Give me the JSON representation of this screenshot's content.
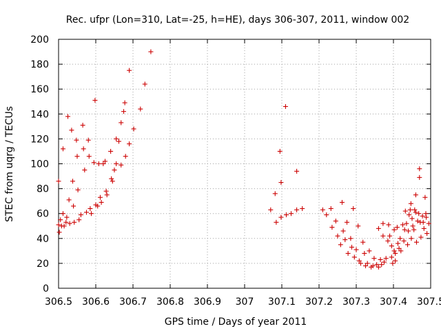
{
  "chart_data": {
    "type": "scatter",
    "title": "Rec. ufpr (Lon=310, Lat=-25, h=HE), days 306-307, 2011, window 002",
    "xlabel": "GPS time / Days of year 2011",
    "ylabel": "STEC from uqrg / TECUs",
    "xlim": [
      306.5,
      307.5
    ],
    "ylim": [
      0,
      200
    ],
    "xticks": [
      "306.5",
      "306.6",
      "306.7",
      "306.8",
      "306.9",
      "307",
      "307.1",
      "307.2",
      "307.3",
      "307.4",
      "307.5"
    ],
    "yticks": [
      "0",
      "20",
      "40",
      "60",
      "80",
      "100",
      "120",
      "140",
      "160",
      "180",
      "200"
    ],
    "grid": true,
    "marker": "+",
    "color": "#cc0000",
    "points": [
      [
        306.5,
        86
      ],
      [
        306.5,
        51
      ],
      [
        306.502,
        45
      ],
      [
        306.505,
        55
      ],
      [
        306.508,
        50
      ],
      [
        306.512,
        112
      ],
      [
        306.512,
        60
      ],
      [
        306.515,
        50
      ],
      [
        306.52,
        53
      ],
      [
        306.522,
        57
      ],
      [
        306.525,
        138
      ],
      [
        306.528,
        71
      ],
      [
        306.53,
        52
      ],
      [
        306.535,
        127
      ],
      [
        306.538,
        86
      ],
      [
        306.54,
        66
      ],
      [
        306.542,
        53
      ],
      [
        306.548,
        119
      ],
      [
        306.55,
        106
      ],
      [
        306.552,
        79
      ],
      [
        306.555,
        55
      ],
      [
        306.56,
        59
      ],
      [
        306.565,
        131
      ],
      [
        306.567,
        112
      ],
      [
        306.57,
        95
      ],
      [
        306.575,
        61
      ],
      [
        306.58,
        119
      ],
      [
        306.582,
        106
      ],
      [
        306.585,
        64
      ],
      [
        306.588,
        60
      ],
      [
        306.595,
        101
      ],
      [
        306.598,
        151
      ],
      [
        306.6,
        67
      ],
      [
        306.605,
        66
      ],
      [
        306.608,
        100
      ],
      [
        306.612,
        73
      ],
      [
        306.615,
        69
      ],
      [
        306.62,
        100
      ],
      [
        306.625,
        102
      ],
      [
        306.628,
        78
      ],
      [
        306.63,
        75
      ],
      [
        306.64,
        110
      ],
      [
        306.642,
        88
      ],
      [
        306.645,
        86
      ],
      [
        306.65,
        95
      ],
      [
        306.655,
        120
      ],
      [
        306.655,
        100
      ],
      [
        306.662,
        118
      ],
      [
        306.668,
        133
      ],
      [
        306.668,
        99
      ],
      [
        306.675,
        142
      ],
      [
        306.678,
        149
      ],
      [
        306.68,
        106
      ],
      [
        306.69,
        175
      ],
      [
        306.69,
        116
      ],
      [
        306.702,
        128
      ],
      [
        306.72,
        144
      ],
      [
        306.732,
        164
      ],
      [
        306.748,
        190
      ],
      [
        307.07,
        63
      ],
      [
        307.082,
        76
      ],
      [
        307.085,
        53
      ],
      [
        307.095,
        110
      ],
      [
        307.098,
        85
      ],
      [
        307.098,
        57
      ],
      [
        307.11,
        146
      ],
      [
        307.112,
        59
      ],
      [
        307.125,
        60
      ],
      [
        307.14,
        94
      ],
      [
        307.14,
        63
      ],
      [
        307.155,
        64
      ],
      [
        307.21,
        63
      ],
      [
        307.22,
        59
      ],
      [
        307.232,
        64
      ],
      [
        307.235,
        49
      ],
      [
        307.245,
        54
      ],
      [
        307.25,
        42
      ],
      [
        307.258,
        35
      ],
      [
        307.262,
        69
      ],
      [
        307.265,
        46
      ],
      [
        307.27,
        39
      ],
      [
        307.275,
        53
      ],
      [
        307.278,
        28
      ],
      [
        307.285,
        40
      ],
      [
        307.288,
        33
      ],
      [
        307.292,
        64
      ],
      [
        307.295,
        25
      ],
      [
        307.3,
        31
      ],
      [
        307.305,
        50
      ],
      [
        307.308,
        22
      ],
      [
        307.312,
        20
      ],
      [
        307.318,
        37
      ],
      [
        307.322,
        28
      ],
      [
        307.325,
        18
      ],
      [
        307.33,
        20
      ],
      [
        307.335,
        30
      ],
      [
        307.34,
        17
      ],
      [
        307.345,
        18
      ],
      [
        307.348,
        24
      ],
      [
        307.355,
        19
      ],
      [
        307.36,
        48
      ],
      [
        307.36,
        17
      ],
      [
        307.365,
        23
      ],
      [
        307.368,
        19
      ],
      [
        307.372,
        52
      ],
      [
        307.372,
        42
      ],
      [
        307.375,
        21
      ],
      [
        307.38,
        24
      ],
      [
        307.385,
        38
      ],
      [
        307.387,
        51
      ],
      [
        307.39,
        42
      ],
      [
        307.395,
        34
      ],
      [
        307.395,
        25
      ],
      [
        307.398,
        20
      ],
      [
        307.402,
        47
      ],
      [
        307.402,
        30
      ],
      [
        307.405,
        28
      ],
      [
        307.405,
        22
      ],
      [
        307.41,
        49
      ],
      [
        307.412,
        36
      ],
      [
        307.415,
        32
      ],
      [
        307.418,
        40
      ],
      [
        307.42,
        30
      ],
      [
        307.425,
        51
      ],
      [
        307.428,
        38
      ],
      [
        307.43,
        47
      ],
      [
        307.432,
        62
      ],
      [
        307.435,
        52
      ],
      [
        307.438,
        35
      ],
      [
        307.44,
        46
      ],
      [
        307.442,
        59
      ],
      [
        307.445,
        63
      ],
      [
        307.447,
        68
      ],
      [
        307.448,
        40
      ],
      [
        307.45,
        56
      ],
      [
        307.452,
        50
      ],
      [
        307.455,
        47
      ],
      [
        307.457,
        63
      ],
      [
        307.46,
        75
      ],
      [
        307.46,
        61
      ],
      [
        307.462,
        37
      ],
      [
        307.465,
        54
      ],
      [
        307.468,
        60
      ],
      [
        307.47,
        96
      ],
      [
        307.47,
        89
      ],
      [
        307.472,
        53
      ],
      [
        307.474,
        41
      ],
      [
        307.478,
        58
      ],
      [
        307.48,
        53
      ],
      [
        307.482,
        48
      ],
      [
        307.485,
        73
      ],
      [
        307.487,
        60
      ],
      [
        307.488,
        57
      ],
      [
        307.49,
        44
      ],
      [
        307.495,
        52
      ]
    ]
  }
}
